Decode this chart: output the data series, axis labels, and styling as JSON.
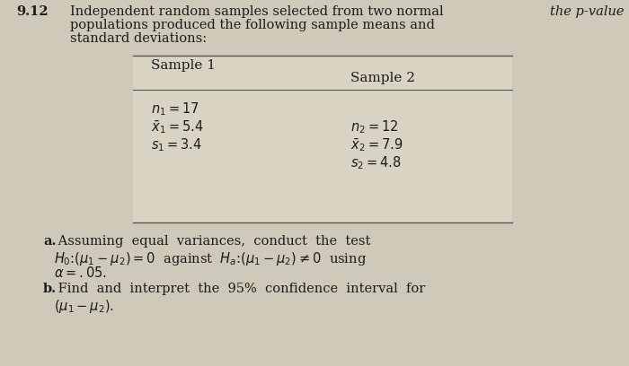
{
  "bg_color": "#cec9b8",
  "title_top_right": "the p-value",
  "problem_number": "9.12",
  "intro_line1": "Independent random samples selected from two normal",
  "intro_line2": "populations produced the following sample means and",
  "intro_line3": "standard deviations:",
  "col1_header": "Sample 1",
  "col2_header": "Sample 2",
  "col1_line1": "$n_1 = 17$",
  "col1_line2": "$\\bar{x}_1 = 5.4$",
  "col1_line3": "$s_1 = 3.4$",
  "col2_line1": "$n_2 = 12$",
  "col2_line2": "$\\bar{x}_2 = 7.9$",
  "col2_line3": "$s_2 = 4.8$",
  "part_a_bold": "a.",
  "part_a_text1": " Assuming  equal  variances,  conduct  the  test",
  "part_a_text2": "$H_0\\colon (\\mu_1 - \\mu_2) = 0$  against  $H_a\\colon (\\mu_1 - \\mu_2) \\neq 0$  using",
  "part_a_text3": "$\\alpha = .05.$",
  "part_b_bold": "b.",
  "part_b_text1": " Find  and  interpret  the  95%  confidence  interval  for",
  "part_b_text2": "$(\\mu_1 - \\mu_2).$",
  "text_color": "#1c1c1c",
  "table_bg": "#d8d3c2",
  "line_color": "#555555",
  "font_size": 10.5,
  "small_font": 9.5
}
